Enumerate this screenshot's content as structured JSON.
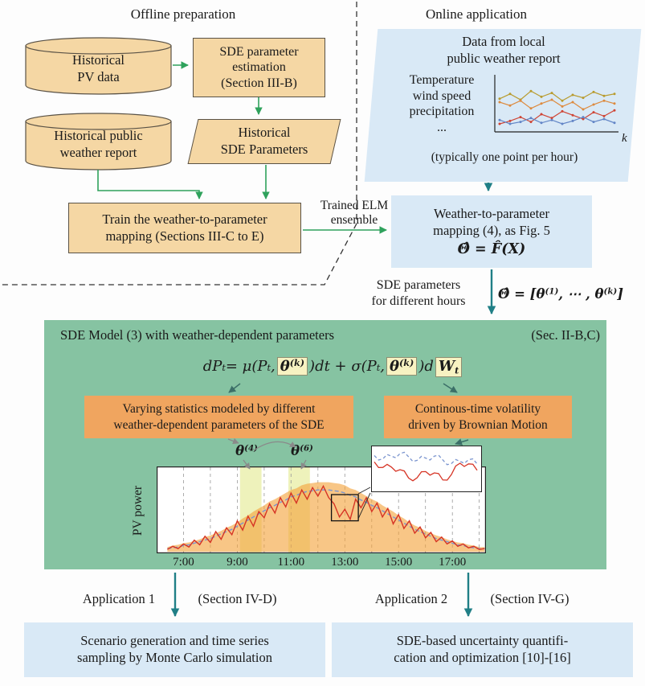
{
  "colors": {
    "tan_fill": "#f5d7a4",
    "tan_border": "#5a5246",
    "blue_fill": "#d9e9f6",
    "green_panel": "#86c3a2",
    "orange_fill": "#f0a55f",
    "highlight_yellow": "#f7f2c2",
    "arrow_green": "#2fa25c",
    "arrow_teal": "#207f86",
    "arrow_dark": "#3c6f68",
    "arrow_gray": "#8a8a8a",
    "red_series": "#d63425",
    "blue_series": "#7b95cf",
    "envelope_orange": "#f3a33c"
  },
  "offline": {
    "title": "Offline preparation",
    "historical_pv": "Historical\nPV data",
    "sde_estimation": "SDE parameter\nestimation\n(Section III-B)",
    "historical_weather": "Historical public\nweather report",
    "historical_sde_params": "Historical\nSDE Parameters",
    "train_mapping": "Train the weather-to-parameter\nmapping (Sections III-C to E)",
    "trained_elm": "Trained ELM\nensemble"
  },
  "online": {
    "title": "Online application",
    "data_source_title": "Data from local\npublic weather report",
    "variables": "Temperature\nwind speed\nprecipitation\n...",
    "note": "(typically one point per hour)",
    "mapping_title": "Weather-to-parameter\nmapping (4), as Fig. 5",
    "mapping_equation": "Θ̂ = F̂(X)",
    "sde_params_label": "SDE parameters\nfor different hours",
    "theta_vector_parts": [
      {
        "t": "Θ̂ = [θ"
      },
      {
        "t": "(1)",
        "s": "sup"
      },
      {
        "t": ", ⋯ , θ"
      },
      {
        "t": "(k)",
        "s": "sup"
      },
      {
        "t": "]"
      }
    ]
  },
  "sde_panel": {
    "title": "SDE Model (3) with weather-dependent parameters",
    "section_ref": "(Sec. II-B,C)",
    "equation_parts": [
      {
        "t": "dP"
      },
      {
        "t": "t",
        "s": "sub"
      },
      {
        "t": " = μ(P"
      },
      {
        "t": "t",
        "s": "sub"
      },
      {
        "t": ", "
      },
      {
        "box": [
          {
            "t": "θ"
          },
          {
            "t": "(k)",
            "s": "sup"
          }
        ]
      },
      {
        "t": ")dt + σ(P"
      },
      {
        "t": "t",
        "s": "sub"
      },
      {
        "t": ", "
      },
      {
        "box": [
          {
            "t": "θ"
          },
          {
            "t": "(k)",
            "s": "sup"
          }
        ]
      },
      {
        "t": ")d"
      },
      {
        "box": [
          {
            "t": "W"
          },
          {
            "t": "t",
            "s": "sub"
          }
        ]
      }
    ],
    "left_box": "Varying statistics modeled by different\nweather-dependent parameters of the SDE",
    "right_box": "Continous-time volatility\ndriven by Brownian Motion",
    "theta4_parts": [
      {
        "t": "θ"
      },
      {
        "t": "(4)",
        "s": "sup"
      }
    ],
    "theta6_parts": [
      {
        "t": "θ"
      },
      {
        "t": "(6)",
        "s": "sup"
      }
    ]
  },
  "applications": {
    "app1_label": "Application 1",
    "app1_section": "(Section IV-D)",
    "app2_label": "Application 2",
    "app2_section": "(Section IV-G)",
    "app1_box": "Scenario generation and time series\nsampling by Monte Carlo simulation",
    "app2_box": "SDE-based uncertainty quantifi-\ncation and optimization [10]-[16]"
  },
  "chart_data": [
    {
      "id": "pv-power-chart",
      "type": "line",
      "ylabel": "PV power",
      "x_range": [
        6.0,
        18.25
      ],
      "x_start": 6.4,
      "x_step": 0.2,
      "x_ticks": [
        7,
        9,
        11,
        13,
        15,
        17
      ],
      "x_tick_labels": [
        "7:00",
        "9:00",
        "11:00",
        "13:00",
        "15:00",
        "17:00"
      ],
      "grid": "vertical-dashed-hourly",
      "highlight_bands": [
        [
          9.1,
          9.9
        ],
        [
          10.9,
          11.7
        ]
      ],
      "zoom_window": [
        12.5,
        13.5
      ],
      "series": [
        {
          "name": "uncertainty-envelope",
          "style": "area",
          "color": "#f3a33c",
          "opacity": 0.62,
          "values": [
            0.06,
            0.08,
            0.09,
            0.11,
            0.12,
            0.14,
            0.16,
            0.19,
            0.21,
            0.24,
            0.27,
            0.31,
            0.34,
            0.38,
            0.43,
            0.47,
            0.52,
            0.56,
            0.6,
            0.65,
            0.68,
            0.72,
            0.76,
            0.8,
            0.82,
            0.86,
            0.88,
            0.89,
            0.9,
            0.9,
            0.9,
            0.89,
            0.88,
            0.86,
            0.82,
            0.8,
            0.76,
            0.72,
            0.68,
            0.65,
            0.6,
            0.56,
            0.52,
            0.47,
            0.43,
            0.38,
            0.34,
            0.31,
            0.27,
            0.24,
            0.21,
            0.19,
            0.16,
            0.14,
            0.12,
            0.11,
            0.09,
            0.08,
            0.06,
            0.06
          ]
        },
        {
          "name": "smooth-mean",
          "style": "dashed",
          "color": "#7b95cf",
          "values": [
            0.04,
            0.05,
            0.06,
            0.08,
            0.09,
            0.11,
            0.13,
            0.15,
            0.17,
            0.2,
            0.23,
            0.26,
            0.29,
            0.33,
            0.37,
            0.41,
            0.45,
            0.49,
            0.53,
            0.57,
            0.6,
            0.64,
            0.67,
            0.71,
            0.73,
            0.76,
            0.78,
            0.79,
            0.8,
            0.8,
            0.8,
            0.79,
            0.78,
            0.76,
            0.73,
            0.71,
            0.67,
            0.64,
            0.6,
            0.57,
            0.53,
            0.49,
            0.45,
            0.41,
            0.37,
            0.33,
            0.29,
            0.26,
            0.23,
            0.2,
            0.17,
            0.15,
            0.13,
            0.11,
            0.09,
            0.08,
            0.06,
            0.05,
            0.04,
            0.04
          ]
        },
        {
          "name": "realized-pv",
          "style": "solid",
          "color": "#d63425",
          "values": [
            0.03,
            0.07,
            0.04,
            0.1,
            0.06,
            0.15,
            0.09,
            0.2,
            0.12,
            0.26,
            0.16,
            0.31,
            0.22,
            0.4,
            0.28,
            0.46,
            0.33,
            0.52,
            0.44,
            0.62,
            0.5,
            0.7,
            0.58,
            0.76,
            0.63,
            0.8,
            0.68,
            0.83,
            0.72,
            0.85,
            0.7,
            0.62,
            0.45,
            0.55,
            0.42,
            0.68,
            0.57,
            0.7,
            0.52,
            0.63,
            0.45,
            0.56,
            0.36,
            0.48,
            0.3,
            0.4,
            0.24,
            0.32,
            0.18,
            0.25,
            0.13,
            0.19,
            0.1,
            0.14,
            0.07,
            0.1,
            0.05,
            0.07,
            0.03,
            0.04
          ]
        }
      ]
    },
    {
      "id": "weather-mini-chart",
      "type": "line",
      "xlabel": "k",
      "x": [
        1,
        2,
        3,
        4,
        5,
        6,
        7,
        8,
        9,
        10,
        11,
        12
      ],
      "series": [
        {
          "name": "temperature",
          "color": "#b89b2e",
          "values": [
            0.62,
            0.72,
            0.6,
            0.78,
            0.66,
            0.74,
            0.58,
            0.7,
            0.64,
            0.76,
            0.68,
            0.72
          ]
        },
        {
          "name": "wind-speed",
          "color": "#dd8a3e",
          "values": [
            0.55,
            0.48,
            0.58,
            0.42,
            0.52,
            0.6,
            0.46,
            0.55,
            0.4,
            0.5,
            0.58,
            0.52
          ]
        },
        {
          "name": "precipitation",
          "color": "#cf4434",
          "values": [
            0.1,
            0.16,
            0.24,
            0.14,
            0.3,
            0.22,
            0.36,
            0.28,
            0.2,
            0.34,
            0.26,
            0.38
          ]
        },
        {
          "name": "series-4",
          "color": "#6285c6",
          "values": [
            0.18,
            0.1,
            0.14,
            0.22,
            0.12,
            0.18,
            0.1,
            0.16,
            0.24,
            0.14,
            0.2,
            0.12
          ]
        }
      ]
    }
  ]
}
